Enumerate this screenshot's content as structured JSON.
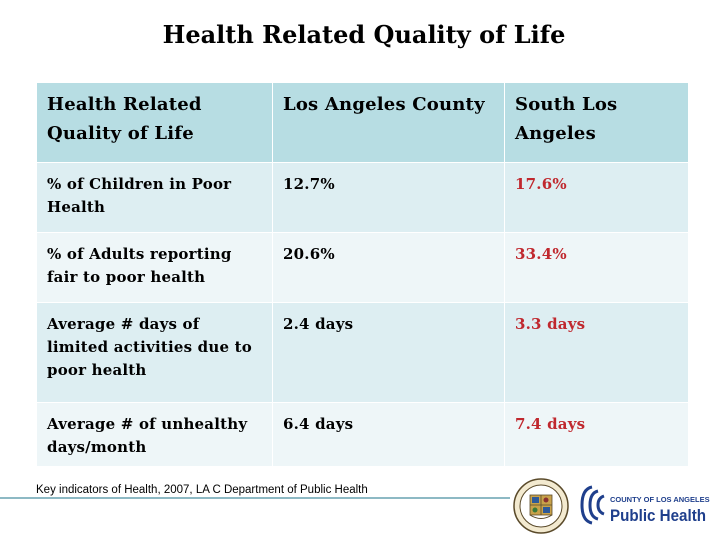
{
  "title": "Health Related Quality of Life",
  "table": {
    "headers": [
      "Health Related Quality of Life",
      "Los Angeles County",
      "South Los Angeles"
    ],
    "rows": [
      [
        "% of Children in Poor Health",
        "12.7%",
        "17.6%"
      ],
      [
        "% of Adults reporting fair to poor health",
        "20.6%",
        "33.4%"
      ],
      [
        "Average # days of limited activities due to poor health",
        "2.4 days",
        "3.3 days"
      ],
      [
        "Average # of unhealthy days/month",
        "6.4 days",
        "7.4 days"
      ]
    ]
  },
  "footer": {
    "source": "Key indicators of Health, 2007, LA C Department of Public Health"
  },
  "logo": {
    "line1": "COUNTY OF LOS ANGELES",
    "line2": "Public Health"
  },
  "colors": {
    "header_bg": "#b7dde3",
    "row_bg_a": "#ddeef2",
    "row_bg_b": "#eef6f8",
    "highlight": "#c0282e",
    "logo_blue": "#1f3f8c"
  }
}
